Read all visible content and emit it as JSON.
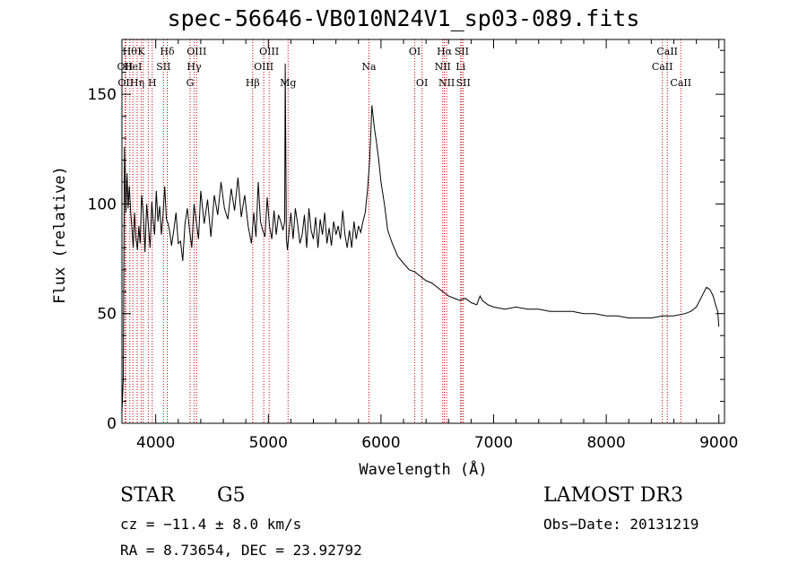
{
  "chart_data": {
    "type": "line",
    "title": "spec-56646-VB010N24V1_sp03-089.fits",
    "xlabel": "Wavelength (Å)",
    "ylabel": "Flux (relative)",
    "xlim": [
      3700,
      9050
    ],
    "ylim": [
      0,
      175
    ],
    "xticks": [
      4000,
      5000,
      6000,
      7000,
      8000,
      9000
    ],
    "yticks": [
      0,
      50,
      100,
      150
    ],
    "grid": false,
    "line_color": "#000000",
    "marker_color": "#cc0000",
    "series": [
      {
        "x": [
          3700,
          3712,
          3722,
          3735,
          3745,
          3755,
          3765,
          3778,
          3790,
          3800,
          3812,
          3825,
          3838,
          3850,
          3862,
          3875,
          3890,
          3905,
          3920,
          3935,
          3950,
          3965,
          3978,
          3990,
          4005,
          4020,
          4035,
          4050,
          4065,
          4080,
          4095,
          4110,
          4125,
          4140,
          4160,
          4180,
          4200,
          4220,
          4240,
          4260,
          4280,
          4300,
          4320,
          4340,
          4360,
          4380,
          4400,
          4430,
          4460,
          4490,
          4520,
          4550,
          4580,
          4610,
          4640,
          4670,
          4700,
          4730,
          4760,
          4790,
          4820,
          4850,
          4870,
          4890,
          4910,
          4930,
          4950,
          4970,
          4990,
          5010,
          5030,
          5050,
          5070,
          5090,
          5110,
          5130,
          5145,
          5150,
          5160,
          5170,
          5185,
          5200,
          5220,
          5240,
          5260,
          5280,
          5300,
          5320,
          5340,
          5360,
          5380,
          5400,
          5420,
          5440,
          5460,
          5480,
          5500,
          5520,
          5540,
          5560,
          5580,
          5600,
          5620,
          5640,
          5660,
          5680,
          5700,
          5720,
          5740,
          5760,
          5780,
          5800,
          5820,
          5840,
          5860,
          5880,
          5900,
          5920,
          5940,
          5960,
          5980,
          6000,
          6030,
          6060,
          6100,
          6150,
          6200,
          6250,
          6300,
          6350,
          6400,
          6450,
          6500,
          6550,
          6600,
          6650,
          6700,
          6750,
          6800,
          6850,
          6880,
          6900,
          6950,
          7000,
          7100,
          7200,
          7300,
          7400,
          7500,
          7600,
          7700,
          7800,
          7900,
          8000,
          8100,
          8200,
          8300,
          8400,
          8500,
          8600,
          8700,
          8750,
          8800,
          8830,
          8860,
          8890,
          8920,
          8950,
          8970,
          8990,
          9000
        ],
        "y": [
          5,
          20,
          126,
          96,
          114,
          98,
          108,
          96,
          88,
          80,
          96,
          84,
          79,
          90,
          82,
          104,
          95,
          78,
          100,
          90,
          80,
          101,
          92,
          86,
          106,
          92,
          99,
          86,
          95,
          108,
          93,
          91,
          87,
          81,
          88,
          96,
          82,
          83,
          74,
          91,
          98,
          88,
          80,
          100,
          92,
          84,
          106,
          91,
          102,
          85,
          104,
          95,
          110,
          98,
          93,
          107,
          97,
          112,
          94,
          104,
          90,
          82,
          96,
          85,
          110,
          92,
          88,
          85,
          103,
          90,
          84,
          97,
          86,
          95,
          92,
          88,
          92,
          164,
          84,
          79,
          88,
          96,
          84,
          98,
          91,
          82,
          86,
          95,
          80,
          98,
          88,
          84,
          94,
          80,
          93,
          86,
          96,
          82,
          89,
          81,
          92,
          86,
          90,
          84,
          97,
          86,
          80,
          88,
          80,
          92,
          84,
          90,
          87,
          92,
          96,
          106,
          120,
          145,
          135,
          128,
          120,
          110,
          100,
          88,
          82,
          76,
          73,
          70,
          69,
          67,
          65,
          64,
          62,
          60,
          58,
          57,
          56,
          57,
          55,
          54,
          58,
          56,
          54,
          53,
          52,
          53,
          52,
          52,
          51,
          51,
          51,
          50,
          50,
          49,
          49,
          48,
          48,
          48,
          49,
          49,
          50,
          51,
          53,
          56,
          59,
          62,
          61,
          58,
          54,
          51,
          44
        ]
      }
    ],
    "markers": [
      {
        "x": 3727,
        "label": "OII",
        "row": 2
      },
      {
        "x": 3734,
        "label": "OII",
        "row": 3
      },
      {
        "x": 3770,
        "label": "Hθ",
        "row": 1
      },
      {
        "x": 3797,
        "label": "HeI",
        "row": 2
      },
      {
        "x": 3835,
        "label": "Hη",
        "row": 3
      },
      {
        "x": 3871,
        "label": "K",
        "row": 1
      },
      {
        "x": 3889,
        "label": "",
        "row": 0
      },
      {
        "x": 3934,
        "label": "",
        "row": 0
      },
      {
        "x": 3969,
        "label": "H",
        "row": 3
      },
      {
        "x": 4069,
        "label": "SII",
        "row": 2
      },
      {
        "x": 4102,
        "label": "Hδ",
        "row": 1
      },
      {
        "x": 4305,
        "label": "G",
        "row": 3
      },
      {
        "x": 4341,
        "label": "Hγ",
        "row": 2
      },
      {
        "x": 4363,
        "label": "OIII",
        "row": 1
      },
      {
        "x": 4861,
        "label": "Hβ",
        "row": 3
      },
      {
        "x": 4959,
        "label": "OIII",
        "row": 2
      },
      {
        "x": 5007,
        "label": "OIII",
        "row": 1
      },
      {
        "x": 5175,
        "label": "Mg",
        "row": 3
      },
      {
        "x": 5893,
        "label": "Na",
        "row": 2
      },
      {
        "x": 6300,
        "label": "OI",
        "row": 1
      },
      {
        "x": 6364,
        "label": "OI",
        "row": 3
      },
      {
        "x": 6548,
        "label": "NII",
        "row": 2
      },
      {
        "x": 6563,
        "label": "Hα",
        "row": 1
      },
      {
        "x": 6583,
        "label": "NII",
        "row": 3
      },
      {
        "x": 6707,
        "label": "Li",
        "row": 2
      },
      {
        "x": 6716,
        "label": "SII",
        "row": 1
      },
      {
        "x": 6731,
        "label": "SII",
        "row": 3
      },
      {
        "x": 8498,
        "label": "CaII",
        "row": 2
      },
      {
        "x": 8542,
        "label": "CaII",
        "row": 1
      },
      {
        "x": 8662,
        "label": "CaII",
        "row": 3
      }
    ]
  },
  "info": {
    "class": "STAR",
    "subclass": "G5",
    "survey": "LAMOST DR3",
    "cz": "cz = −11.4 ± 8.0 km/s",
    "obs_date": "Obs−Date: 20131219",
    "radec": "RA =   8.73654, DEC =  23.92792"
  }
}
